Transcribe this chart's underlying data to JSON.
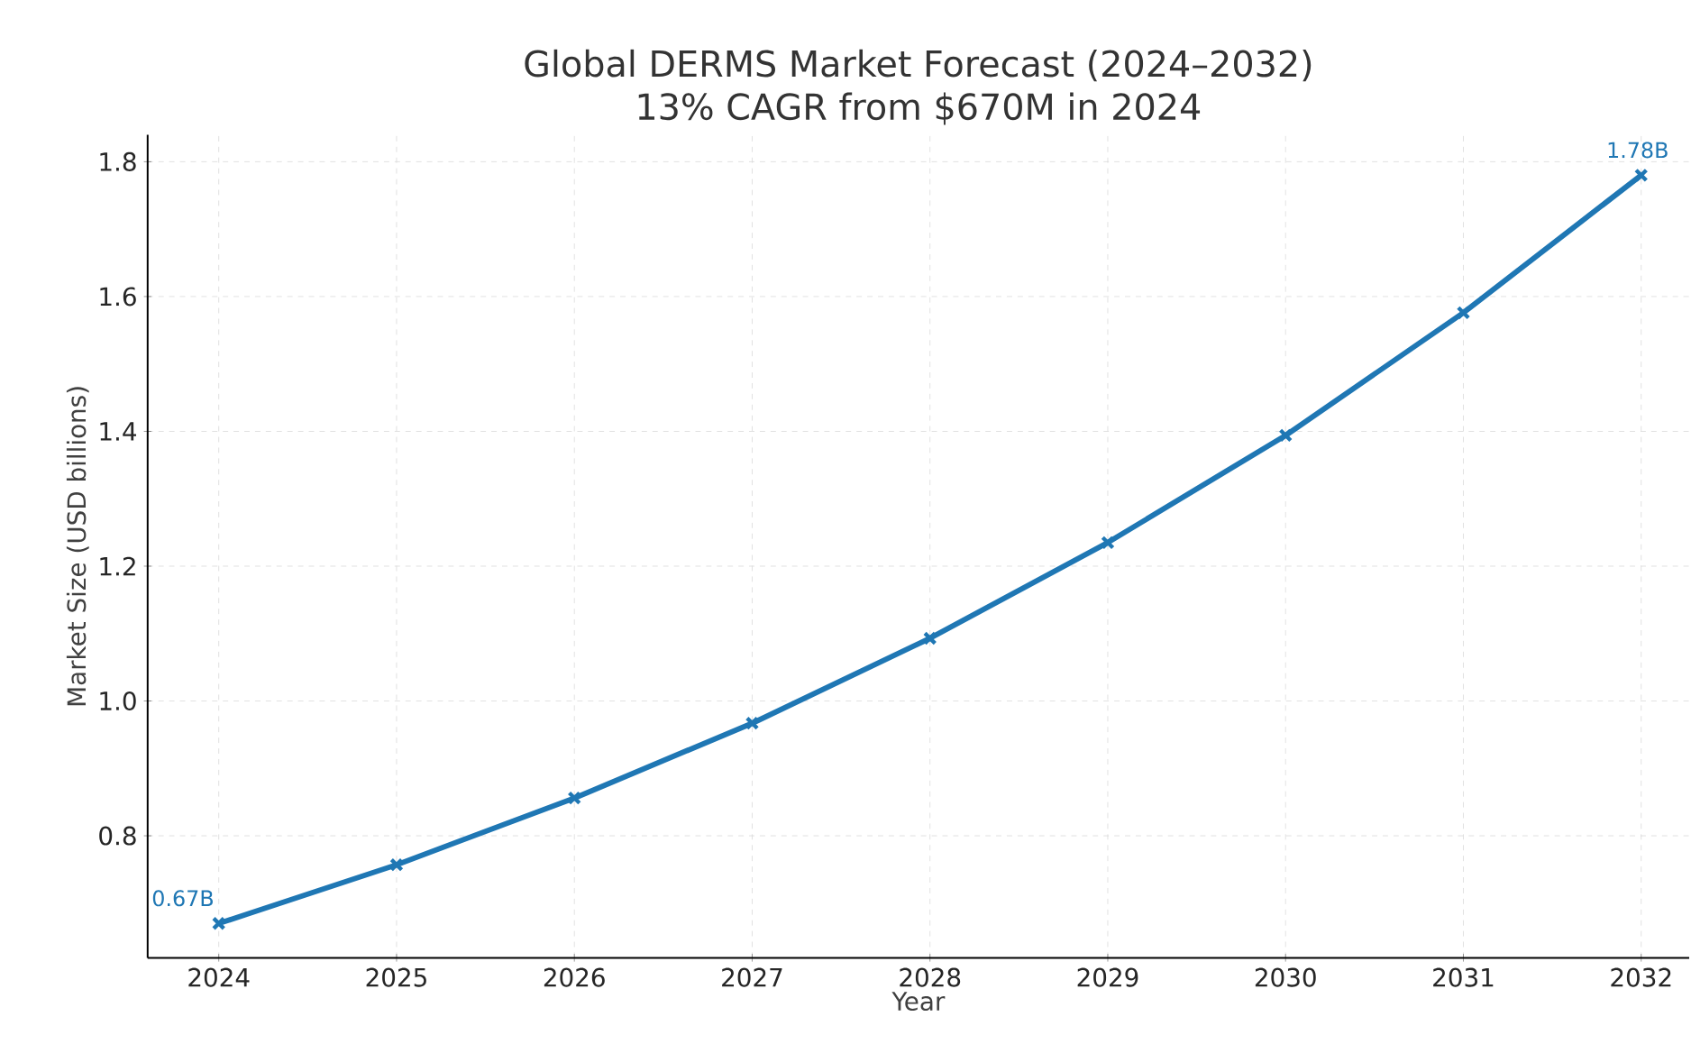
{
  "chart_data": {
    "type": "line",
    "title": "Global DERMS Market Forecast (2024–2032)",
    "subtitle": "13% CAGR from $670M in 2024",
    "xlabel": "Year",
    "ylabel": "Market Size (USD billions)",
    "x": [
      2024,
      2025,
      2026,
      2027,
      2028,
      2029,
      2030,
      2031,
      2032
    ],
    "series": [
      {
        "color": "#1f77b4",
        "values": [
          0.67,
          0.757,
          0.856,
          0.967,
          1.093,
          1.235,
          1.394,
          1.576,
          1.78
        ]
      }
    ],
    "xlim": [
      2023.6,
      2032.27
    ],
    "ylim": [
      0.619,
      1.84
    ],
    "xticks": [
      2024,
      2025,
      2026,
      2027,
      2028,
      2029,
      2030,
      2031,
      2032
    ],
    "yticks": [
      {
        "value": 0.8,
        "label": "0.8"
      },
      {
        "value": 1.0,
        "label": "1.0"
      },
      {
        "value": 1.2,
        "label": "1.2"
      },
      {
        "value": 1.4,
        "label": "1.4"
      },
      {
        "value": 1.6,
        "label": "1.6"
      },
      {
        "value": 1.8,
        "label": "1.8"
      }
    ],
    "annotations": [
      {
        "text": "0.67B",
        "x": 2024,
        "y": 0.67
      },
      {
        "text": "1.78B",
        "x": 2032,
        "y": 1.78
      }
    ],
    "grid": true,
    "marker": "cross",
    "line_style": "solid"
  }
}
